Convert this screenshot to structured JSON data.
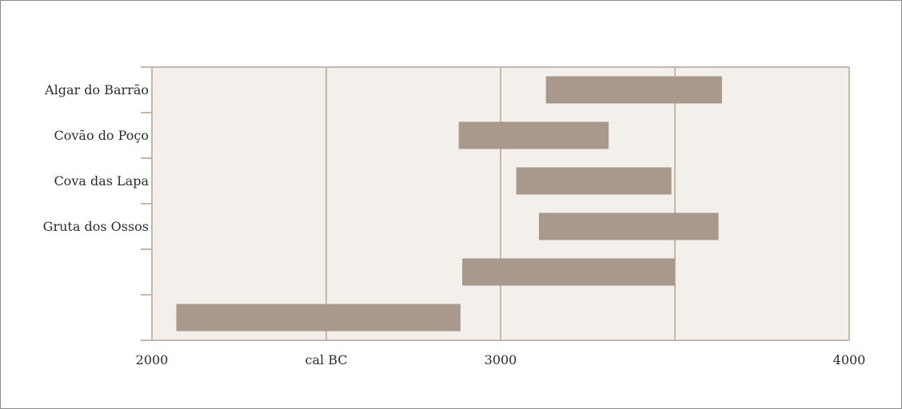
{
  "colors": {
    "plot_background": "#f3efeb",
    "bar_fill": "#a8998c",
    "grid_and_axis": "#c6b7ad",
    "text": "#2b2b2b"
  },
  "chart_data": {
    "type": "bar",
    "orientation": "horizontal",
    "title": "",
    "xlabel": "",
    "ylabel": "",
    "xlim": [
      2000,
      4000
    ],
    "x_tick_labels": [
      {
        "value": 2000,
        "label": "2000"
      },
      {
        "value": 2500,
        "label": "cal BC"
      },
      {
        "value": 3000,
        "label": "3000"
      },
      {
        "value": 4000,
        "label": "4000"
      }
    ],
    "gridlines_x": [
      2500,
      3000,
      3500
    ],
    "grid": true,
    "legend": "none",
    "series": [
      {
        "bars": [
          {
            "category": "Algar do Barrão",
            "start": 3130,
            "end": 3635
          },
          {
            "category": "Covão do Poço",
            "start": 2880,
            "end": 3310
          },
          {
            "category": "Cova das Lapa",
            "start": 3045,
            "end": 3490
          },
          {
            "category": "Gruta dos Ossos",
            "start": 3110,
            "end": 3625
          },
          {
            "category": "",
            "start": 2890,
            "end": 3500
          },
          {
            "category": "",
            "start": 2070,
            "end": 2885
          }
        ]
      }
    ]
  }
}
